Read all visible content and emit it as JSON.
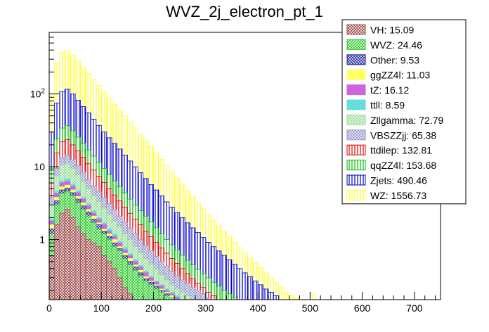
{
  "chart_data": {
    "type": "bar",
    "stacked": true,
    "title": "WVZ_2j_electron_pt_1",
    "xlabel": "",
    "ylabel": "",
    "xlim": [
      0,
      750
    ],
    "ylog": true,
    "ylim": [
      0.15,
      700
    ],
    "bin_width": 10,
    "x_ticks": [
      "0",
      "100",
      "200",
      "300",
      "400",
      "500",
      "600",
      "700"
    ],
    "y_ticks": [
      {
        "value": 1,
        "label": "1"
      },
      {
        "value": 10,
        "label": "10"
      },
      {
        "value": 100,
        "label": "10",
        "sup": "2"
      }
    ],
    "legend_position": "top-right",
    "series": [
      {
        "name": "VH: 15.09",
        "color": "#a05050",
        "pattern": "cross",
        "totals": [
          0.6,
          1.6,
          2.3,
          2.6,
          2.0,
          1.5,
          1.2,
          1.0,
          0.9,
          0.8,
          0.6,
          0.5,
          0.4,
          0.3,
          0.22,
          0.18
        ]
      },
      {
        "name": "WVZ: 24.46",
        "color": "#33cc33",
        "pattern": "cross",
        "totals": [
          1.2,
          3.0,
          4.3,
          4.6,
          4.0,
          3.2,
          2.6,
          2.1,
          1.7,
          1.4,
          1.2,
          1.0,
          0.8,
          0.7,
          0.55,
          0.45,
          0.38,
          0.32,
          0.27,
          0.24,
          0.21,
          0.19,
          0.17,
          0.16
        ]
      },
      {
        "name": "Other: 9.53",
        "color": "#2a2aa0",
        "pattern": "cross",
        "totals": [
          1.4,
          3.4,
          4.8,
          5.1,
          4.4,
          3.6,
          2.9,
          2.4,
          1.9,
          1.6,
          1.3,
          1.1,
          0.9,
          0.75,
          0.6,
          0.5,
          0.42,
          0.35,
          0.29,
          0.26,
          0.23,
          0.2,
          0.18,
          0.16
        ]
      },
      {
        "name": "ggZZ4l: 11.03",
        "color": "#ffff66",
        "pattern": "solid",
        "totals": [
          1.6,
          3.8,
          5.3,
          5.6,
          4.8,
          3.9,
          3.2,
          2.6,
          2.1,
          1.7,
          1.4,
          1.2,
          1.0,
          0.8,
          0.65,
          0.55,
          0.45,
          0.38,
          0.31,
          0.27,
          0.24,
          0.21,
          0.19,
          0.17
        ]
      },
      {
        "name": "tZ: 16.12",
        "color": "#cc66dd",
        "pattern": "solid",
        "totals": [
          1.8,
          4.3,
          6.0,
          6.3,
          5.4,
          4.4,
          3.6,
          2.9,
          2.3,
          1.9,
          1.6,
          1.3,
          1.1,
          0.9,
          0.72,
          0.6,
          0.5,
          0.42,
          0.35,
          0.3,
          0.26,
          0.23,
          0.2,
          0.18,
          0.16
        ]
      },
      {
        "name": "ttll: 8.59",
        "color": "#66dddd",
        "pattern": "solid",
        "totals": [
          1.9,
          4.6,
          6.4,
          6.8,
          5.8,
          4.7,
          3.8,
          3.1,
          2.5,
          2.0,
          1.7,
          1.4,
          1.2,
          0.95,
          0.78,
          0.64,
          0.53,
          0.44,
          0.37,
          0.31,
          0.27,
          0.24,
          0.21,
          0.19,
          0.17
        ]
      },
      {
        "name": "Zllgamma: 72.79",
        "color": "#99dd99",
        "pattern": "cross",
        "totals": [
          3.0,
          7.5,
          10.5,
          11.2,
          9.5,
          7.7,
          6.2,
          5.0,
          4.0,
          3.3,
          2.7,
          2.2,
          1.8,
          1.5,
          1.2,
          1.0,
          0.8,
          0.66,
          0.55,
          0.46,
          0.39,
          0.33,
          0.28,
          0.24,
          0.21,
          0.19,
          0.17
        ]
      },
      {
        "name": "VBSZZjj: 65.38",
        "color": "#9999cc",
        "pattern": "cross",
        "totals": [
          3.8,
          9.5,
          13.5,
          14.5,
          12.5,
          10.3,
          8.4,
          6.8,
          5.5,
          4.6,
          3.8,
          3.1,
          2.6,
          2.1,
          1.75,
          1.45,
          1.2,
          1.0,
          0.83,
          0.7,
          0.59,
          0.5,
          0.43,
          0.37,
          0.32,
          0.28,
          0.25,
          0.22,
          0.2,
          0.18,
          0.16
        ]
      },
      {
        "name": "ttdilep: 132.81",
        "color": "#dd0000",
        "pattern": "vlines",
        "totals": [
          6.0,
          15.5,
          22.0,
          23.5,
          20.0,
          16.5,
          13.5,
          11.0,
          9.0,
          7.4,
          6.1,
          5.0,
          4.1,
          3.4,
          2.8,
          2.3,
          1.9,
          1.6,
          1.3,
          1.1,
          0.92,
          0.77,
          0.65,
          0.55,
          0.47,
          0.4,
          0.34,
          0.29,
          0.25,
          0.22,
          0.19,
          0.17
        ]
      },
      {
        "name": "qqZZ4l: 153.68",
        "color": "#00bb00",
        "pattern": "vlines",
        "totals": [
          9.5,
          24.0,
          34.0,
          36.5,
          31.0,
          25.5,
          21.0,
          17.0,
          14.0,
          11.5,
          9.5,
          7.8,
          6.4,
          5.3,
          4.4,
          3.6,
          3.0,
          2.5,
          2.1,
          1.75,
          1.45,
          1.2,
          1.0,
          0.85,
          0.72,
          0.61,
          0.52,
          0.45,
          0.39,
          0.34,
          0.3,
          0.26,
          0.23,
          0.2,
          0.18,
          0.16
        ]
      },
      {
        "name": "Zjets: 490.46",
        "color": "#0000cc",
        "pattern": "vlines",
        "totals": [
          30,
          75,
          108,
          116,
          100,
          82,
          67,
          55,
          45,
          37,
          30,
          25,
          21,
          17.5,
          14.5,
          12.0,
          10.0,
          8.3,
          6.9,
          5.7,
          4.8,
          4.0,
          3.3,
          2.8,
          2.35,
          2.0,
          1.7,
          1.45,
          1.25,
          1.07,
          0.92,
          0.8,
          0.7,
          0.61,
          0.53,
          0.46,
          0.4,
          0.35,
          0.31,
          0.27,
          0.24,
          0.21,
          0.19,
          0.17
        ]
      },
      {
        "name": "WZ: 1556.73",
        "color": "#ffff33",
        "pattern": "vlines",
        "totals": [
          100,
          260,
          370,
          395,
          340,
          280,
          230,
          190,
          158,
          130,
          107,
          88,
          72,
          60,
          50,
          41,
          34,
          28,
          23,
          19,
          15.5,
          12.7,
          10.4,
          8.5,
          7.0,
          5.7,
          4.7,
          3.9,
          3.2,
          2.65,
          2.2,
          1.85,
          1.55,
          1.3,
          1.1,
          0.92,
          0.78,
          0.66,
          0.56,
          0.48,
          0.41,
          0.35,
          0.3,
          0.26,
          0.22,
          0.19,
          0.17,
          0.16,
          0.15,
          0.15,
          0.18,
          0.15
        ]
      }
    ]
  }
}
